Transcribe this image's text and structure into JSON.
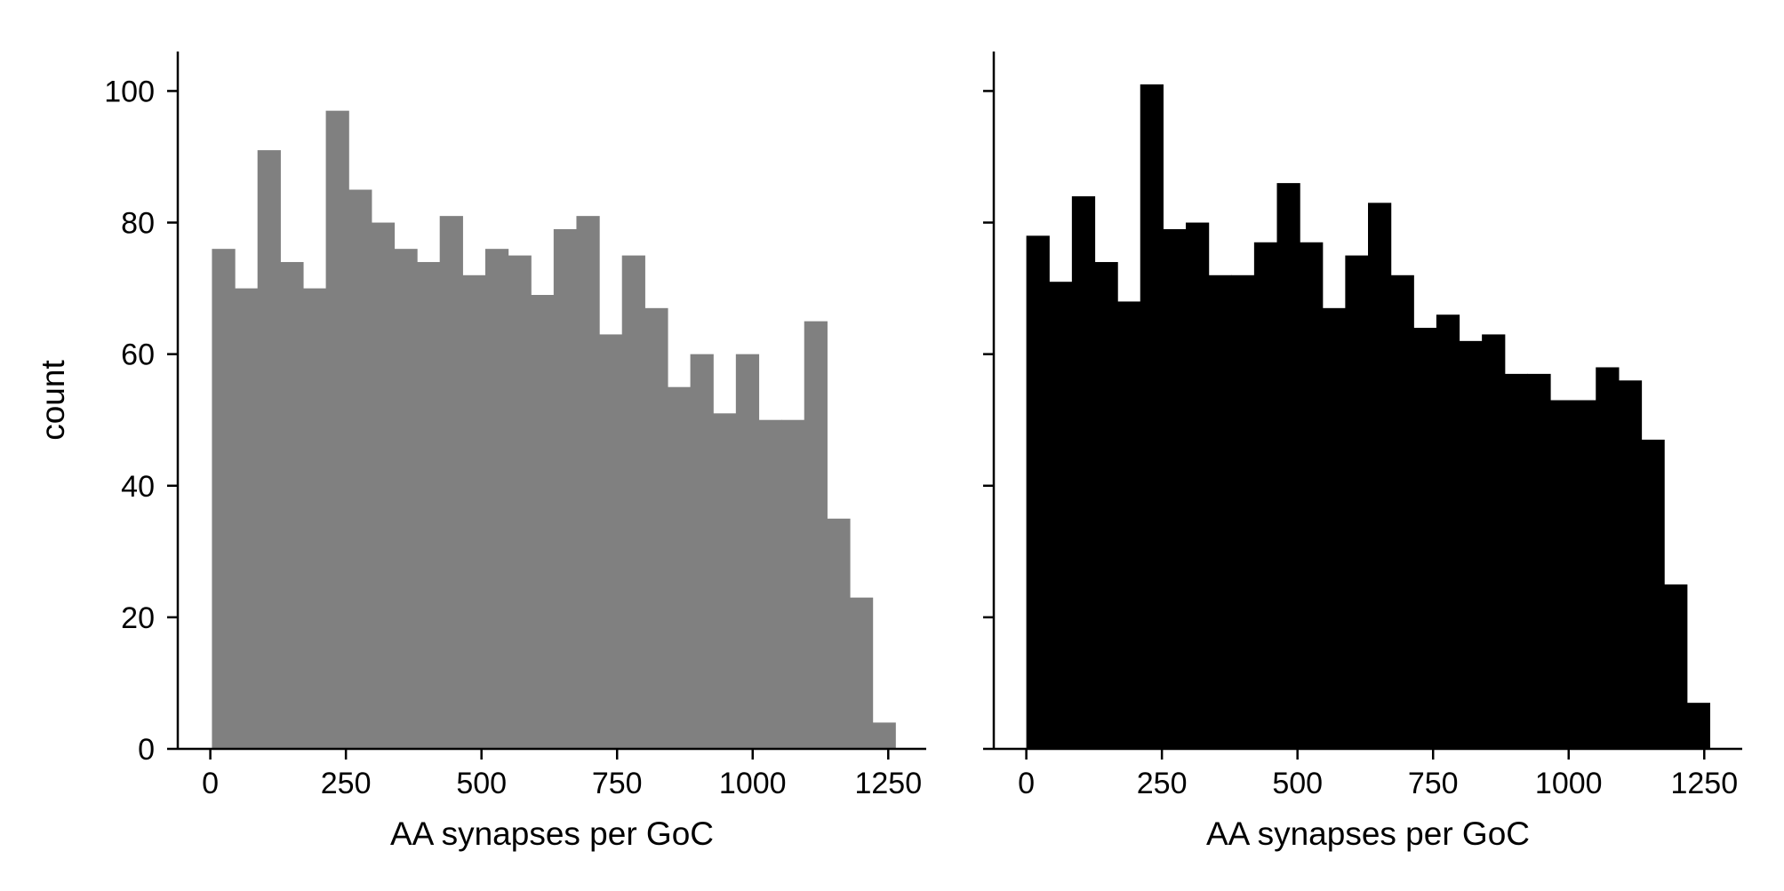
{
  "chart_data": [
    {
      "type": "bar",
      "xlabel": "AA synapses per GoC",
      "ylabel": "count",
      "xlim": [
        -60,
        1320
      ],
      "ylim": [
        0,
        106
      ],
      "xticks": [
        0,
        250,
        500,
        750,
        1000,
        1250
      ],
      "yticks": [
        0,
        20,
        40,
        60,
        80,
        100
      ],
      "bin_edges": [
        3,
        45,
        87,
        129,
        171,
        213,
        255,
        297,
        339,
        381,
        423,
        465,
        507,
        549,
        591,
        633,
        675,
        717,
        759,
        801,
        843,
        885,
        927,
        969,
        1011,
        1053,
        1095,
        1137,
        1179,
        1221,
        1263
      ],
      "values": [
        76,
        70,
        91,
        74,
        70,
        97,
        85,
        80,
        76,
        74,
        81,
        72,
        76,
        75,
        69,
        79,
        81,
        63,
        75,
        67,
        55,
        60,
        51,
        60,
        50,
        50,
        65,
        35,
        23,
        4
      ],
      "color": "#808080",
      "grid": false,
      "legend": "none"
    },
    {
      "type": "bar",
      "xlabel": "AA synapses per GoC",
      "ylabel": "",
      "xlim": [
        -60,
        1320
      ],
      "ylim": [
        0,
        106
      ],
      "xticks": [
        0,
        250,
        500,
        750,
        1000,
        1250
      ],
      "yticks": [
        0,
        20,
        40,
        60,
        80,
        100
      ],
      "ytick_labels_visible": false,
      "bin_edges": [
        0,
        42,
        84,
        126,
        168,
        210,
        252,
        294,
        336,
        378,
        420,
        462,
        504,
        546,
        588,
        630,
        672,
        714,
        756,
        798,
        840,
        882,
        924,
        966,
        1008,
        1050,
        1092,
        1134,
        1176,
        1218,
        1260
      ],
      "values": [
        78,
        71,
        84,
        74,
        68,
        101,
        79,
        80,
        72,
        72,
        77,
        86,
        77,
        67,
        75,
        83,
        72,
        64,
        66,
        62,
        63,
        57,
        57,
        53,
        53,
        58,
        56,
        47,
        25,
        7
      ],
      "color": "#000000",
      "grid": false,
      "legend": "none"
    }
  ]
}
